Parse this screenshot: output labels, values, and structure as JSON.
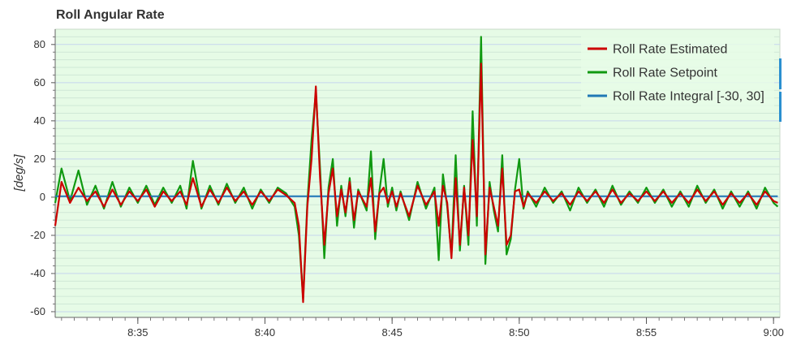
{
  "chart_data": {
    "type": "line",
    "title": "Roll Angular Rate",
    "xlabel": "",
    "ylabel": "[deg/s]",
    "x_unit": "time (h:mm)",
    "xlim": [
      "8:31:45",
      "9:00:15"
    ],
    "ylim": [
      -63,
      88
    ],
    "x_ticks": [
      "8:35",
      "8:40",
      "8:45",
      "8:50",
      "8:55",
      "9:00"
    ],
    "y_ticks": [
      80,
      60,
      40,
      20,
      0,
      -20,
      -40,
      -60
    ],
    "grid": true,
    "legend_position": "top-right",
    "colors": {
      "plot_background": "#e6fbe6",
      "grid": "#c6d6ee",
      "estimated": "#cc0000",
      "setpoint": "#109910",
      "integral": "#1f78b4"
    },
    "series": [
      {
        "name": "Roll Rate Estimated",
        "color": "#cc0000",
        "x": [
          "8:31:45",
          "8:32:00",
          "8:32:20",
          "8:32:40",
          "8:33:00",
          "8:33:20",
          "8:33:40",
          "8:34:00",
          "8:34:20",
          "8:34:40",
          "8:35:00",
          "8:35:20",
          "8:35:40",
          "8:36:00",
          "8:36:20",
          "8:36:40",
          "8:36:55",
          "8:37:10",
          "8:37:30",
          "8:37:50",
          "8:38:10",
          "8:38:30",
          "8:38:50",
          "8:39:10",
          "8:39:30",
          "8:39:50",
          "8:40:10",
          "8:40:30",
          "8:40:50",
          "8:41:10",
          "8:41:20",
          "8:41:30",
          "8:41:40",
          "8:41:50",
          "8:42:00",
          "8:42:10",
          "8:42:20",
          "8:42:30",
          "8:42:40",
          "8:42:50",
          "8:43:00",
          "8:43:10",
          "8:43:20",
          "8:43:30",
          "8:43:40",
          "8:44:00",
          "8:44:10",
          "8:44:20",
          "8:44:30",
          "8:44:40",
          "8:44:50",
          "8:45:00",
          "8:45:10",
          "8:45:20",
          "8:45:40",
          "8:46:00",
          "8:46:20",
          "8:46:40",
          "8:46:50",
          "8:47:00",
          "8:47:10",
          "8:47:20",
          "8:47:30",
          "8:47:40",
          "8:47:50",
          "8:48:00",
          "8:48:10",
          "8:48:20",
          "8:48:30",
          "8:48:40",
          "8:48:50",
          "8:49:00",
          "8:49:10",
          "8:49:20",
          "8:49:30",
          "8:49:40",
          "8:49:50",
          "8:50:00",
          "8:50:10",
          "8:50:20",
          "8:50:40",
          "8:51:00",
          "8:51:20",
          "8:51:40",
          "8:52:00",
          "8:52:20",
          "8:52:40",
          "8:53:00",
          "8:53:20",
          "8:53:40",
          "8:54:00",
          "8:54:20",
          "8:54:40",
          "8:55:00",
          "8:55:20",
          "8:55:40",
          "8:56:00",
          "8:56:20",
          "8:56:40",
          "8:57:00",
          "8:57:20",
          "8:57:40",
          "8:58:00",
          "8:58:20",
          "8:58:40",
          "8:59:00",
          "8:59:20",
          "8:59:40",
          "9:00:00",
          "9:00:10"
        ],
        "y": [
          -15,
          8,
          -3,
          5,
          -2,
          3,
          -5,
          4,
          -4,
          3,
          -2,
          4,
          -5,
          3,
          -2,
          3,
          -4,
          10,
          -5,
          4,
          -3,
          5,
          -2,
          3,
          -4,
          3,
          -2,
          4,
          1,
          -3,
          -15,
          -55,
          -5,
          20,
          58,
          10,
          -25,
          2,
          15,
          -10,
          4,
          -8,
          8,
          -12,
          3,
          -5,
          10,
          -18,
          2,
          5,
          -3,
          3,
          -5,
          2,
          -10,
          6,
          -4,
          3,
          -15,
          6,
          -3,
          -32,
          10,
          -25,
          5,
          -20,
          30,
          -10,
          70,
          -30,
          5,
          -5,
          -15,
          15,
          -25,
          -20,
          3,
          4,
          -5,
          2,
          -3,
          3,
          -2,
          2,
          -4,
          3,
          -2,
          3,
          -3,
          4,
          -3,
          2,
          -2,
          3,
          -2,
          3,
          -3,
          2,
          -3,
          4,
          -2,
          3,
          -4,
          2,
          -3,
          2,
          -4,
          3,
          -2,
          -3
        ]
      },
      {
        "name": "Roll Rate Setpoint",
        "color": "#109910",
        "x": [
          "8:31:45",
          "8:32:00",
          "8:32:20",
          "8:32:40",
          "8:33:00",
          "8:33:20",
          "8:33:40",
          "8:34:00",
          "8:34:20",
          "8:34:40",
          "8:35:00",
          "8:35:20",
          "8:35:40",
          "8:36:00",
          "8:36:20",
          "8:36:40",
          "8:36:55",
          "8:37:10",
          "8:37:30",
          "8:37:50",
          "8:38:10",
          "8:38:30",
          "8:38:50",
          "8:39:10",
          "8:39:30",
          "8:39:50",
          "8:40:10",
          "8:40:30",
          "8:40:50",
          "8:41:10",
          "8:41:20",
          "8:41:30",
          "8:41:40",
          "8:41:50",
          "8:42:00",
          "8:42:10",
          "8:42:20",
          "8:42:30",
          "8:42:40",
          "8:42:50",
          "8:43:00",
          "8:43:10",
          "8:43:20",
          "8:43:30",
          "8:43:40",
          "8:44:00",
          "8:44:10",
          "8:44:20",
          "8:44:30",
          "8:44:40",
          "8:44:50",
          "8:45:00",
          "8:45:10",
          "8:45:20",
          "8:45:40",
          "8:46:00",
          "8:46:20",
          "8:46:40",
          "8:46:50",
          "8:47:00",
          "8:47:10",
          "8:47:20",
          "8:47:30",
          "8:47:40",
          "8:47:50",
          "8:48:00",
          "8:48:10",
          "8:48:20",
          "8:48:30",
          "8:48:40",
          "8:48:50",
          "8:49:00",
          "8:49:10",
          "8:49:20",
          "8:49:30",
          "8:49:40",
          "8:49:50",
          "8:50:00",
          "8:50:10",
          "8:50:20",
          "8:50:40",
          "8:51:00",
          "8:51:20",
          "8:51:40",
          "8:52:00",
          "8:52:20",
          "8:52:40",
          "8:53:00",
          "8:53:20",
          "8:53:40",
          "8:54:00",
          "8:54:20",
          "8:54:40",
          "8:55:00",
          "8:55:20",
          "8:55:40",
          "8:56:00",
          "8:56:20",
          "8:56:40",
          "8:57:00",
          "8:57:20",
          "8:57:40",
          "8:58:00",
          "8:58:20",
          "8:58:40",
          "8:59:00",
          "8:59:20",
          "8:59:40",
          "9:00:00",
          "9:00:10"
        ],
        "y": [
          -3,
          15,
          -2,
          14,
          -4,
          6,
          -6,
          8,
          -5,
          5,
          -3,
          6,
          -4,
          5,
          -3,
          6,
          -6,
          19,
          -6,
          6,
          -4,
          7,
          -3,
          5,
          -6,
          4,
          -3,
          5,
          2,
          -5,
          -20,
          -53,
          -3,
          30,
          55,
          15,
          -32,
          5,
          20,
          -15,
          6,
          -10,
          10,
          -16,
          4,
          -7,
          24,
          -22,
          3,
          20,
          -5,
          5,
          -7,
          3,
          -12,
          8,
          -6,
          5,
          -33,
          12,
          -5,
          -30,
          22,
          -28,
          6,
          -25,
          45,
          -15,
          84,
          -35,
          8,
          -7,
          -18,
          22,
          -30,
          -22,
          4,
          20,
          -6,
          3,
          -5,
          5,
          -3,
          3,
          -7,
          5,
          -3,
          4,
          -5,
          6,
          -4,
          3,
          -3,
          5,
          -3,
          4,
          -5,
          3,
          -5,
          6,
          -3,
          4,
          -6,
          3,
          -5,
          3,
          -6,
          5,
          -3,
          -5
        ]
      },
      {
        "name": "Roll Rate Integral [-30, 30]",
        "color": "#1f78b4",
        "x": [
          "8:31:45",
          "8:35:00",
          "8:40:00",
          "8:45:00",
          "8:50:00",
          "8:55:00",
          "9:00:10"
        ],
        "y": [
          0.5,
          0.5,
          0.5,
          0.5,
          0.5,
          0.5,
          0.5
        ]
      }
    ]
  }
}
